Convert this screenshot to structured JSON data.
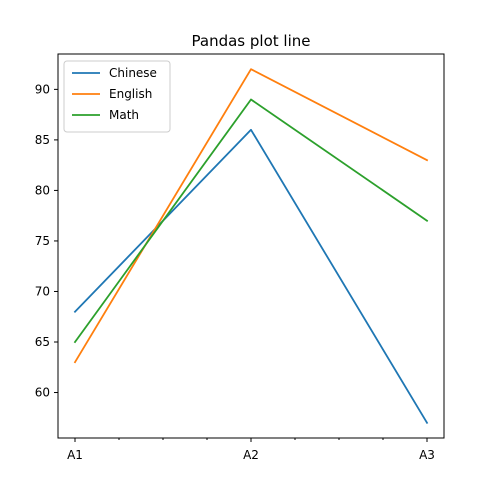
{
  "chart_data": {
    "type": "line",
    "title": "Pandas plot line",
    "xlabel": "",
    "ylabel": "",
    "categories": [
      "A1",
      "A2",
      "A3"
    ],
    "ylim": [
      55.5,
      93.5
    ],
    "yticks": [
      60,
      65,
      70,
      75,
      80,
      85,
      90
    ],
    "minor_xticks": 4,
    "grid": false,
    "legend_position": "top-left",
    "series": [
      {
        "name": "Chinese",
        "values": [
          68,
          86,
          57
        ],
        "color": "#1f77b4"
      },
      {
        "name": "English",
        "values": [
          63,
          92,
          83
        ],
        "color": "#ff7f0e"
      },
      {
        "name": "Math",
        "values": [
          65,
          89,
          77
        ],
        "color": "#2ca02c"
      }
    ]
  }
}
